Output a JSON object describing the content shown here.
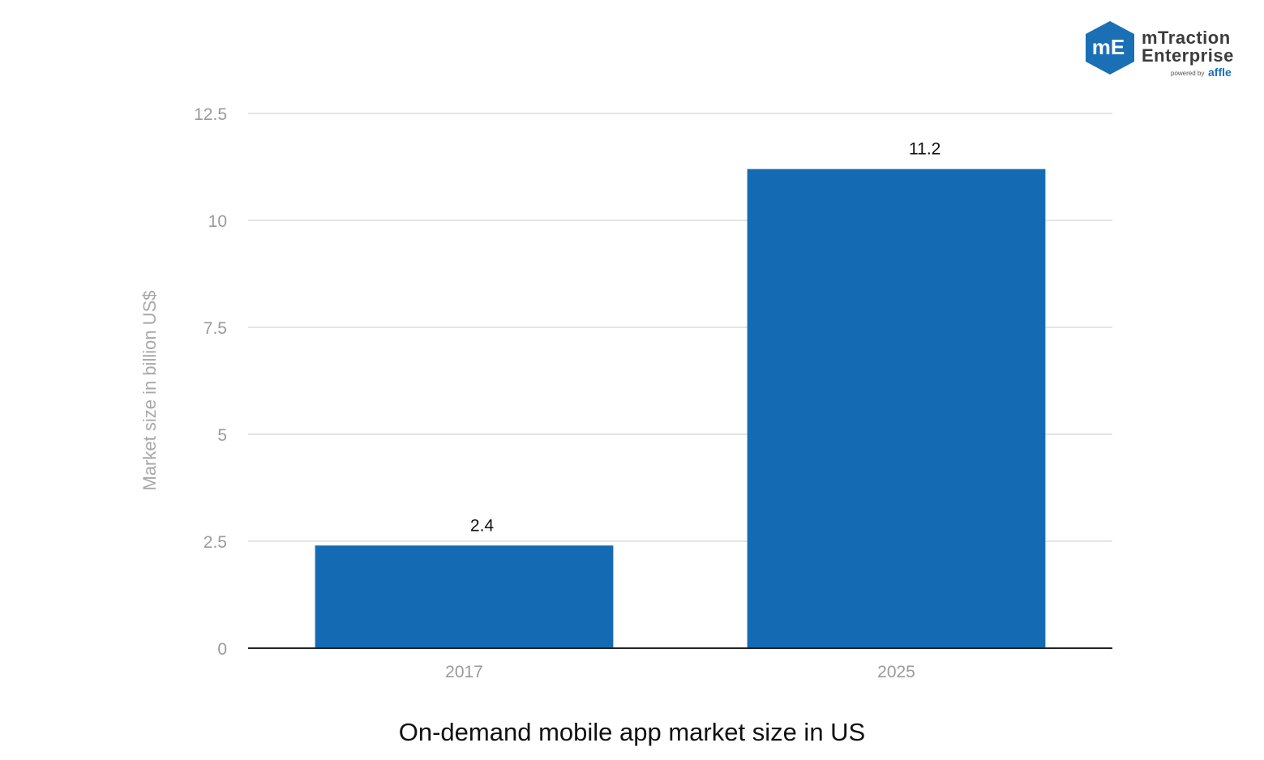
{
  "brand": {
    "line1": "mTraction",
    "line2": "Enterprise",
    "mark": "mE",
    "powered": "powered by",
    "partner": "affle",
    "color": "#1a6fb5"
  },
  "chart_data": {
    "type": "bar",
    "title": "On-demand mobile app market size in US",
    "xlabel": "",
    "ylabel": "Market size in billion US$",
    "categories": [
      "2017",
      "2025"
    ],
    "values": [
      2.4,
      11.2
    ],
    "data_labels": [
      "2.4",
      "11.2"
    ],
    "ylim": [
      0,
      12.5
    ],
    "yticks": [
      0,
      2.5,
      5,
      7.5,
      10,
      12.5
    ],
    "ytick_labels": [
      "0",
      "2.5",
      "5",
      "7.5",
      "10",
      "12.5"
    ],
    "grid": true,
    "bar_color": "#156bb3"
  }
}
